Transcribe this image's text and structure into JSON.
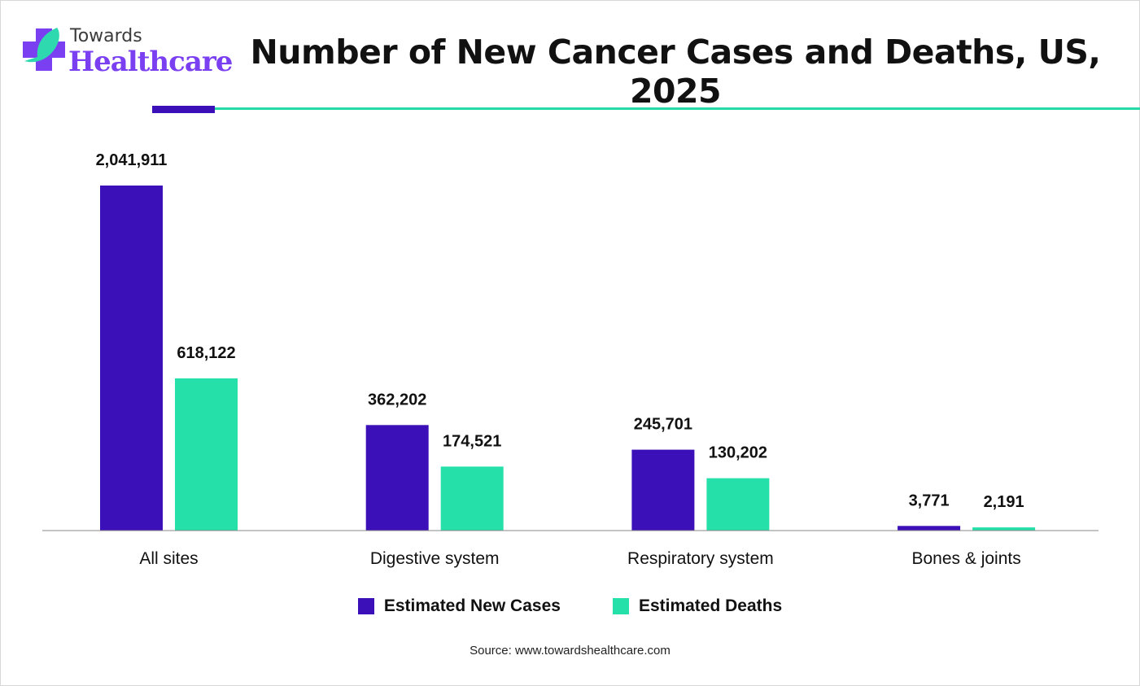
{
  "logo": {
    "line1": "Towards",
    "line2": "Healthcare"
  },
  "title": "Number of New Cancer Cases and Deaths, US, 2025",
  "source": "Source: www.towardshealthcare.com",
  "colors": {
    "new_cases": "#3c10b8",
    "deaths": "#26e0aa",
    "accent_line": "#26d9a6"
  },
  "chart_data": {
    "type": "bar",
    "title": "Number of New Cancer Cases and Deaths, US, 2025",
    "categories": [
      "All sites",
      "Digestive system",
      "Respiratory system",
      "Bones & joints"
    ],
    "series": [
      {
        "name": "Estimated New Cases",
        "values": [
          2041911,
          362202,
          245701,
          3771
        ],
        "labels": [
          "2,041,911",
          "362,202",
          "245,701",
          "3,771"
        ]
      },
      {
        "name": "Estimated Deaths",
        "values": [
          618122,
          174521,
          130202,
          2191
        ],
        "labels": [
          "618,122",
          "174,521",
          "130,202",
          "2,191"
        ]
      }
    ],
    "xlabel": "",
    "ylabel": "",
    "grid": false,
    "legend": "bottom"
  }
}
